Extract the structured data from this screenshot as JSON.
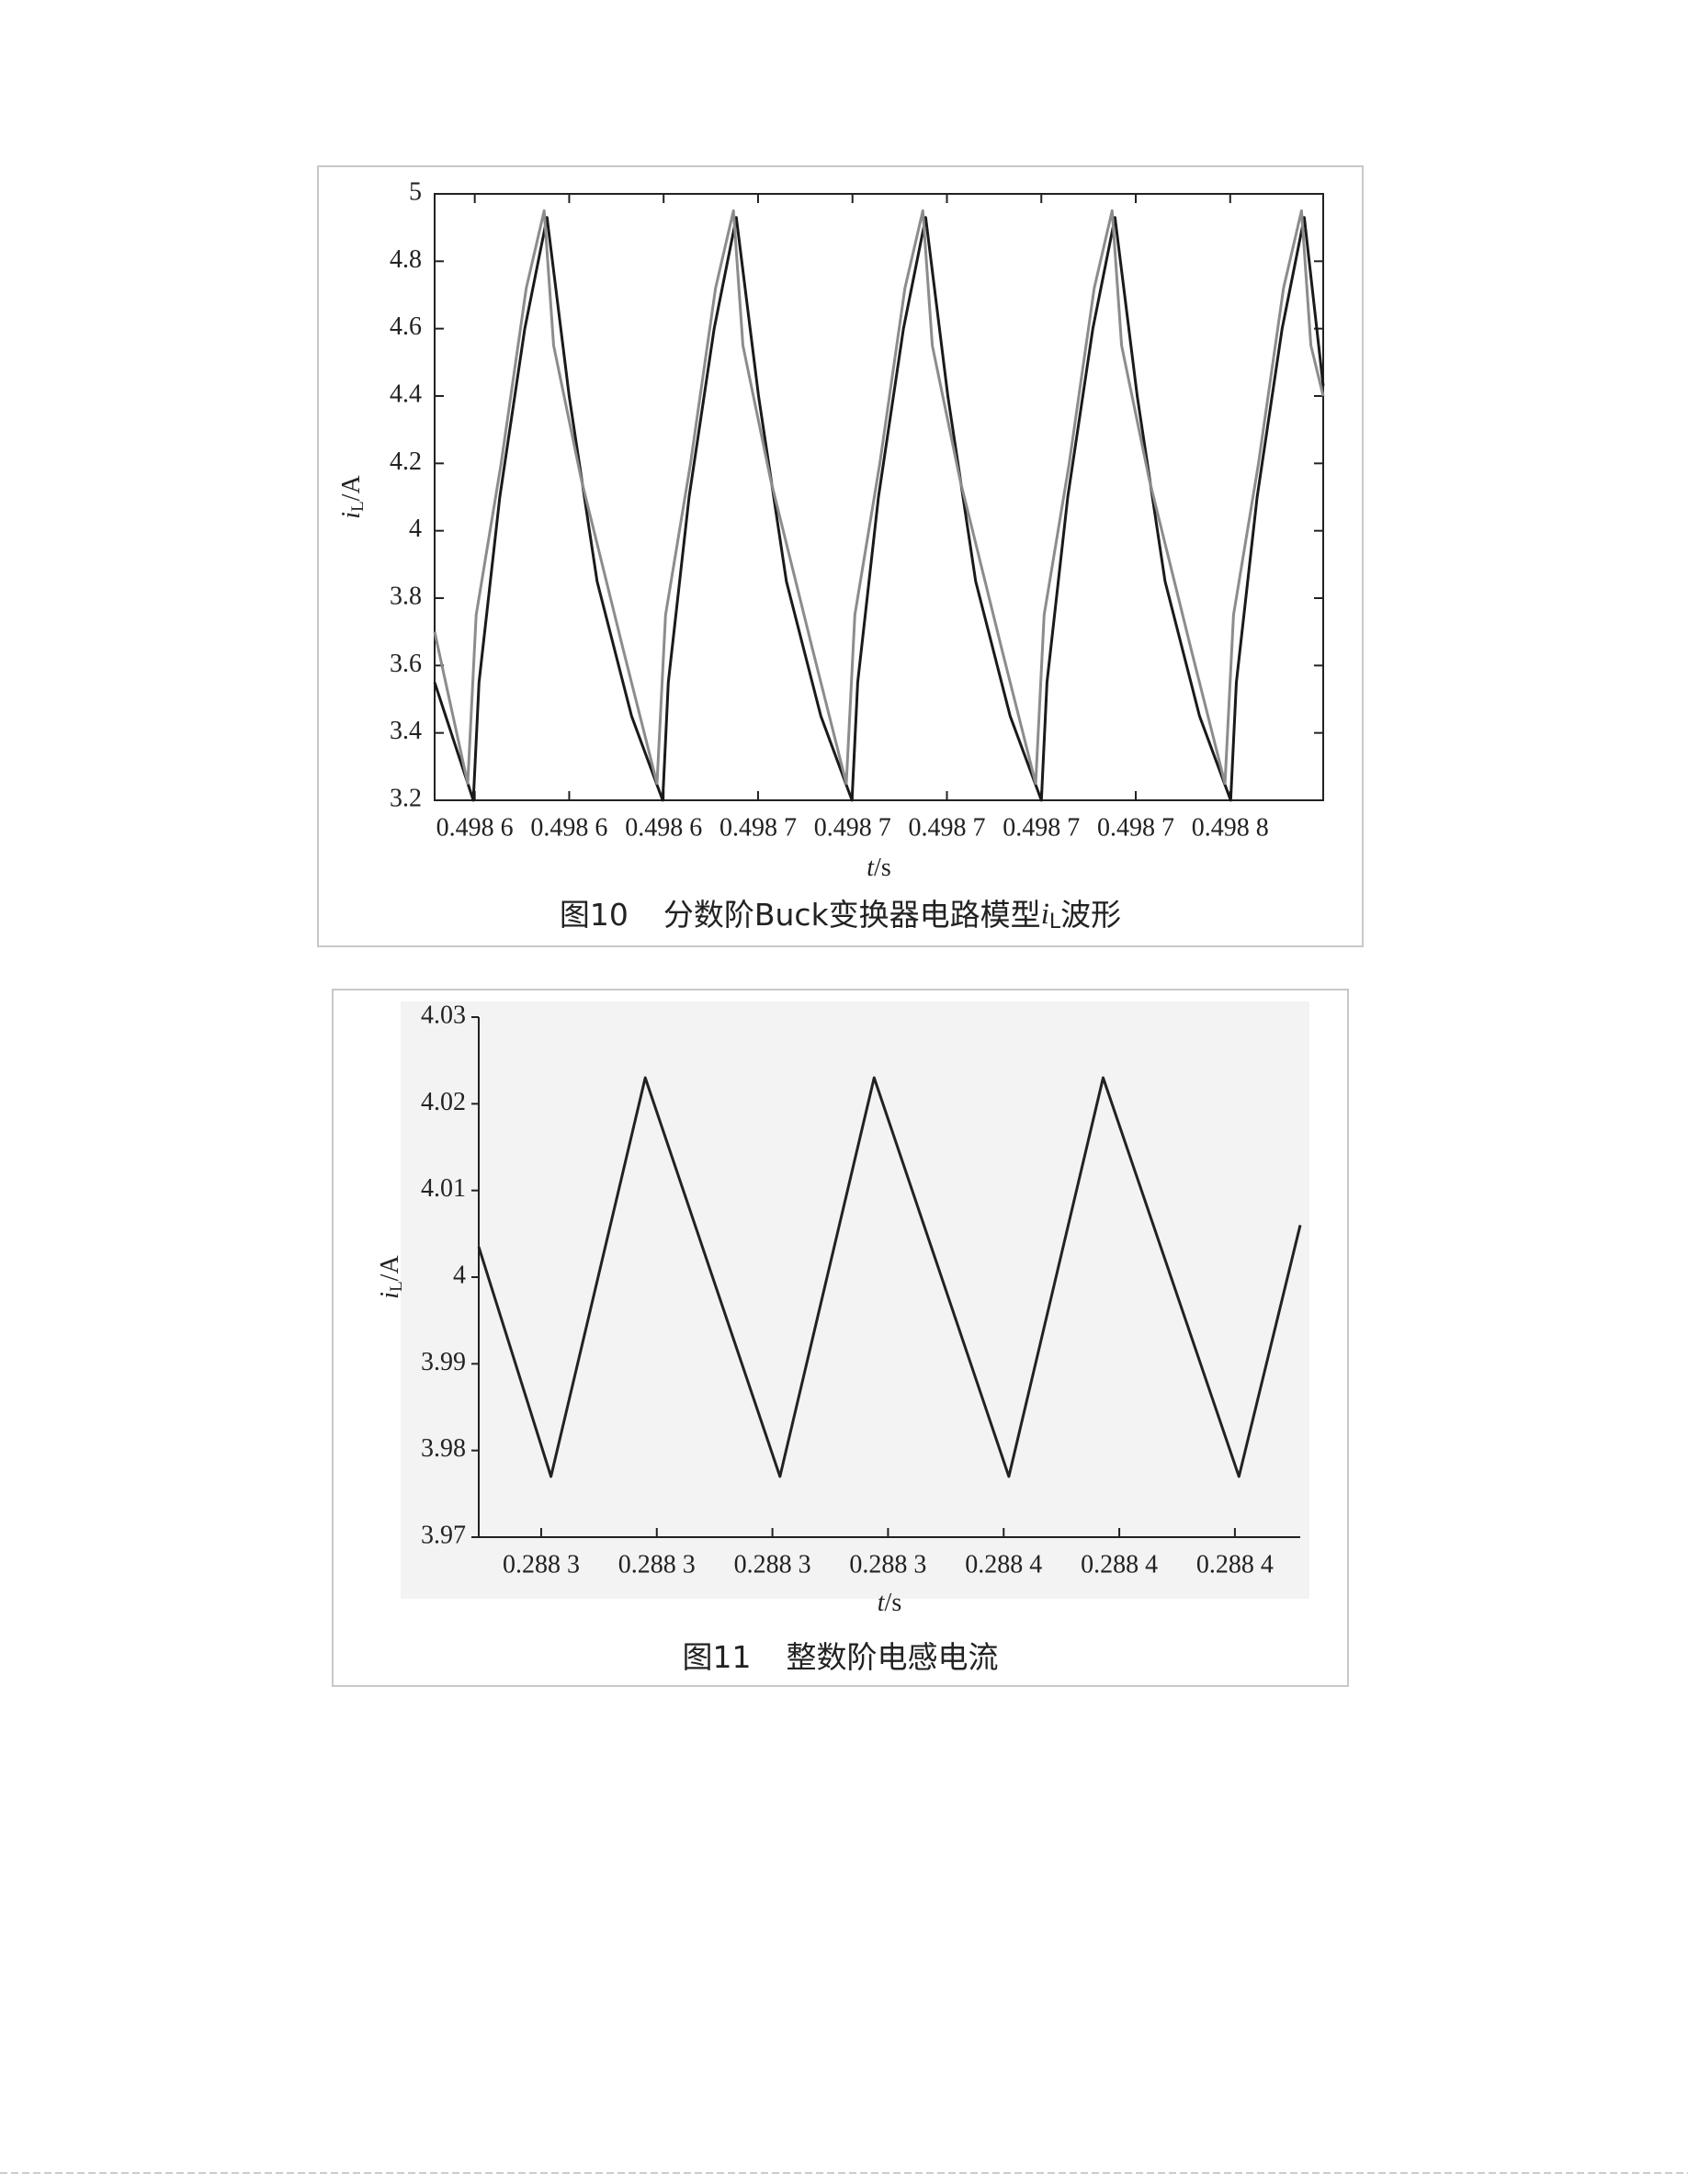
{
  "chart_data": [
    {
      "type": "line",
      "caption": {
        "number": "图10",
        "before": "分数阶Buck变换器电路模型",
        "symbol": "i",
        "subscript": "L",
        "after": "波形"
      },
      "y_label": {
        "symbol": "i",
        "subscript": "L",
        "unit": "/A"
      },
      "x_label": {
        "symbol": "t",
        "unit": "/s"
      },
      "xlim": [
        0.4985815,
        0.4987697
      ],
      "ylim": [
        3.2,
        5
      ],
      "yticks": [
        3.2,
        3.4,
        3.6,
        3.8,
        4,
        4.2,
        4.4,
        4.6,
        4.8,
        5
      ],
      "xticks": [
        {
          "value": 0.49859,
          "label": "0.498 6"
        },
        {
          "value": 0.49861,
          "label": "0.498 6"
        },
        {
          "value": 0.49863,
          "label": "0.498 6"
        },
        {
          "value": 0.49865,
          "label": "0.498 7"
        },
        {
          "value": 0.49867,
          "label": "0.498 7"
        },
        {
          "value": 0.49869,
          "label": "0.498 7"
        },
        {
          "value": 0.49871,
          "label": "0.498 7"
        },
        {
          "value": 0.49873,
          "label": "0.498 7"
        },
        {
          "value": 0.49875,
          "label": "0.498 8"
        }
      ],
      "series": [
        {
          "color": "#1a1a1a",
          "x": [
            0.4985815,
            0.4985897,
            0.4985909,
            0.4985953,
            0.4986006,
            0.4986053,
            0.49861,
            0.4986159,
            0.4986232,
            0.4986298,
            0.498631,
            0.4986354,
            0.4986407,
            0.4986454,
            0.4986501,
            0.498656,
            0.4986633,
            0.4986699,
            0.4986711,
            0.4986755,
            0.4986808,
            0.4986855,
            0.4986902,
            0.4986961,
            0.4987034,
            0.49871,
            0.4987112,
            0.4987156,
            0.4987209,
            0.4987256,
            0.4987303,
            0.4987362,
            0.4987435,
            0.4987501,
            0.4987513,
            0.4987557,
            0.498761,
            0.4987657,
            0.4987697
          ],
          "values": [
            3.55,
            3.2,
            3.55,
            4.1,
            4.6,
            4.93,
            4.4,
            3.85,
            3.45,
            3.2,
            3.55,
            4.1,
            4.6,
            4.93,
            4.4,
            3.85,
            3.45,
            3.2,
            3.55,
            4.1,
            4.6,
            4.93,
            4.4,
            3.85,
            3.45,
            3.2,
            3.55,
            4.1,
            4.6,
            4.93,
            4.4,
            3.85,
            3.45,
            3.2,
            3.55,
            4.1,
            4.6,
            4.93,
            4.43
          ]
        },
        {
          "color": "#8c8c8c",
          "x": [
            0.4985815,
            0.4985885,
            0.4985903,
            0.4985956,
            0.4986009,
            0.4986047,
            0.4986067,
            0.4986126,
            0.4986214,
            0.4986286,
            0.4986304,
            0.4986357,
            0.498641,
            0.4986448,
            0.4986468,
            0.4986527,
            0.4986615,
            0.4986687,
            0.4986705,
            0.4986758,
            0.4986811,
            0.4986849,
            0.4986869,
            0.4986928,
            0.4987016,
            0.4987088,
            0.4987106,
            0.4987159,
            0.4987212,
            0.498725,
            0.498727,
            0.4987329,
            0.4987417,
            0.4987489,
            0.4987507,
            0.498756,
            0.4987613,
            0.4987651,
            0.4987671,
            0.4987697
          ],
          "values": [
            3.7,
            3.25,
            3.75,
            4.2,
            4.72,
            4.95,
            4.55,
            4.15,
            3.65,
            3.25,
            3.75,
            4.2,
            4.72,
            4.95,
            4.55,
            4.15,
            3.65,
            3.25,
            3.75,
            4.2,
            4.72,
            4.95,
            4.55,
            4.15,
            3.65,
            3.25,
            3.75,
            4.2,
            4.72,
            4.95,
            4.55,
            4.15,
            3.65,
            3.25,
            3.75,
            4.2,
            4.72,
            4.95,
            4.55,
            4.4
          ]
        }
      ]
    },
    {
      "type": "line",
      "caption": {
        "number": "图11",
        "before": "整数阶电感电流"
      },
      "y_label": {
        "symbol": "i",
        "subscript": "L",
        "unit": "/A"
      },
      "x_label": {
        "symbol": "t",
        "unit": "/s"
      },
      "xlim": [
        0.2882692,
        0.2884113
      ],
      "ylim": [
        3.97,
        4.03
      ],
      "yticks": [
        3.97,
        3.98,
        3.99,
        4,
        4.01,
        4.02,
        4.03
      ],
      "xticks": [
        {
          "value": 0.28828,
          "label": "0.288 3"
        },
        {
          "value": 0.2883,
          "label": "0.288 3"
        },
        {
          "value": 0.28832,
          "label": "0.288 3"
        },
        {
          "value": 0.28834,
          "label": "0.288 3"
        },
        {
          "value": 0.28836,
          "label": "0.288 4"
        },
        {
          "value": 0.28838,
          "label": "0.288 4"
        },
        {
          "value": 0.2884,
          "label": "0.288 4"
        }
      ],
      "series": [
        {
          "color": "#222222",
          "x": [
            0.2882692,
            0.2882817,
            0.288298,
            0.2883213,
            0.2883376,
            0.2883609,
            0.2883772,
            0.2884007,
            0.2884113
          ],
          "values": [
            4.0035,
            3.977,
            4.023,
            3.977,
            4.023,
            3.977,
            4.023,
            3.977,
            4.006
          ]
        }
      ]
    }
  ]
}
